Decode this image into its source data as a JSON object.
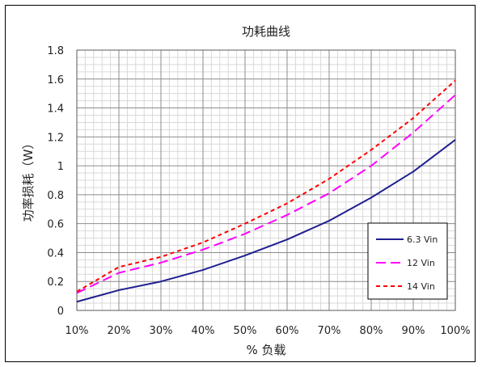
{
  "chart_data": {
    "type": "line",
    "title": "功耗曲线",
    "xlabel": "% 负载",
    "ylabel": "功率损耗（W）",
    "x": [
      "10%",
      "20%",
      "30%",
      "40%",
      "50%",
      "60%",
      "70%",
      "80%",
      "90%",
      "100%"
    ],
    "ylim": [
      0,
      1.8
    ],
    "yticks": [
      "0",
      "0.2",
      "0.4",
      "0.6",
      "0.8",
      "1",
      "1.2",
      "1.4",
      "1.6",
      "1.8"
    ],
    "grid": true,
    "legend_position": "bottom-right",
    "series": [
      {
        "name": "6.3 Vin",
        "color": "#1f1f8f",
        "dash": "solid",
        "values": [
          0.06,
          0.14,
          0.2,
          0.28,
          0.38,
          0.49,
          0.62,
          0.78,
          0.96,
          1.18
        ]
      },
      {
        "name": "12 Vin",
        "color": "#ff00ff",
        "dash": "long-dash",
        "values": [
          0.12,
          0.26,
          0.33,
          0.42,
          0.53,
          0.66,
          0.81,
          1.0,
          1.23,
          1.49
        ]
      },
      {
        "name": "14 Vin",
        "color": "#ff0000",
        "dash": "short-dash",
        "values": [
          0.13,
          0.3,
          0.37,
          0.47,
          0.6,
          0.74,
          0.91,
          1.11,
          1.33,
          1.59
        ]
      }
    ]
  }
}
